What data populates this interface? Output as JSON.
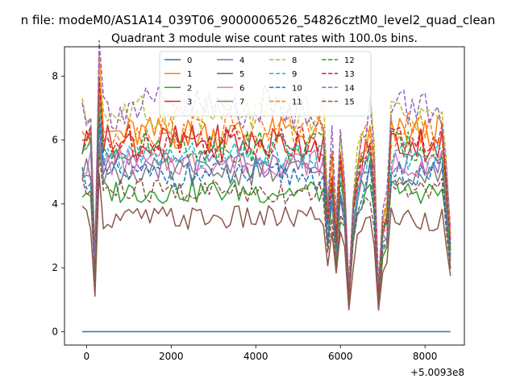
{
  "chart_data": {
    "type": "line",
    "suptitle": "n file: modeM0/AS1A14_039T06_9000006526_54826cztM0_level2_quad_clean",
    "title": "Quadrant 3 module wise count rates with 100.0s bins.",
    "xlabel": "",
    "ylabel": "",
    "x_offset_label": "+5.0093e8",
    "xlim": [
      -520,
      8930
    ],
    "ylim": [
      -0.42,
      8.92
    ],
    "x_ticks": [
      0,
      2000,
      4000,
      6000,
      8000
    ],
    "x_tick_labels": [
      "0",
      "2000",
      "4000",
      "6000",
      "8000"
    ],
    "y_ticks": [
      0,
      2,
      4,
      6,
      8
    ],
    "y_tick_labels": [
      "0",
      "2",
      "4",
      "6",
      "8"
    ],
    "legend": {
      "loc": "upper center",
      "ncol": 4
    },
    "series": [
      {
        "name": "0",
        "color": "#1f77b4",
        "style": "solid",
        "base": 0.0,
        "amp": 0.0
      },
      {
        "name": "1",
        "color": "#ff7f0e",
        "style": "solid",
        "base": 6.2,
        "amp": 0.28
      },
      {
        "name": "2",
        "color": "#2ca02c",
        "style": "solid",
        "base": 4.4,
        "amp": 0.2
      },
      {
        "name": "3",
        "color": "#d62728",
        "style": "solid",
        "base": 5.9,
        "amp": 0.3
      },
      {
        "name": "4",
        "color": "#9467bd",
        "style": "solid",
        "base": 5.2,
        "amp": 0.22
      },
      {
        "name": "5",
        "color": "#8c564b",
        "style": "solid",
        "base": 3.55,
        "amp": 0.2
      },
      {
        "name": "6",
        "color": "#e377c2",
        "style": "solid",
        "base": 5.3,
        "amp": 0.22
      },
      {
        "name": "7",
        "color": "#7f7f7f",
        "style": "solid",
        "base": 5.0,
        "amp": 0.22
      },
      {
        "name": "8",
        "color": "#bcbd22",
        "style": "dashed",
        "base": 6.8,
        "amp": 0.3
      },
      {
        "name": "9",
        "color": "#17becf",
        "style": "dashed",
        "base": 5.5,
        "amp": 0.22
      },
      {
        "name": "10",
        "color": "#1f77b4",
        "style": "dashed",
        "base": 4.9,
        "amp": 0.22
      },
      {
        "name": "11",
        "color": "#ff7f0e",
        "style": "dashed",
        "base": 6.3,
        "amp": 0.28
      },
      {
        "name": "12",
        "color": "#2ca02c",
        "style": "dashed",
        "base": 5.8,
        "amp": 0.25
      },
      {
        "name": "13",
        "color": "#d62728",
        "style": "dashed",
        "base": 6.0,
        "amp": 0.28
      },
      {
        "name": "14",
        "color": "#9467bd",
        "style": "dashed",
        "base": 7.0,
        "amp": 0.35
      },
      {
        "name": "15",
        "color": "#8c564b",
        "style": "dashed",
        "base": 4.4,
        "amp": 0.22
      }
    ],
    "x_start": -100,
    "x_step": 100,
    "n_points": 88,
    "dip_factors": {
      "3": 0.35,
      "4": 1.3,
      "58": 0.6,
      "59": 0.85,
      "60": 0.5,
      "61": 0.85,
      "62": 0.7,
      "63": 0.2,
      "64": 0.6,
      "65": 0.8,
      "66": 0.9,
      "67": 0.95,
      "69": 0.8,
      "70": 0.2,
      "71": 0.55,
      "72": 0.6,
      "86": 0.75,
      "87": 0.45
    }
  }
}
